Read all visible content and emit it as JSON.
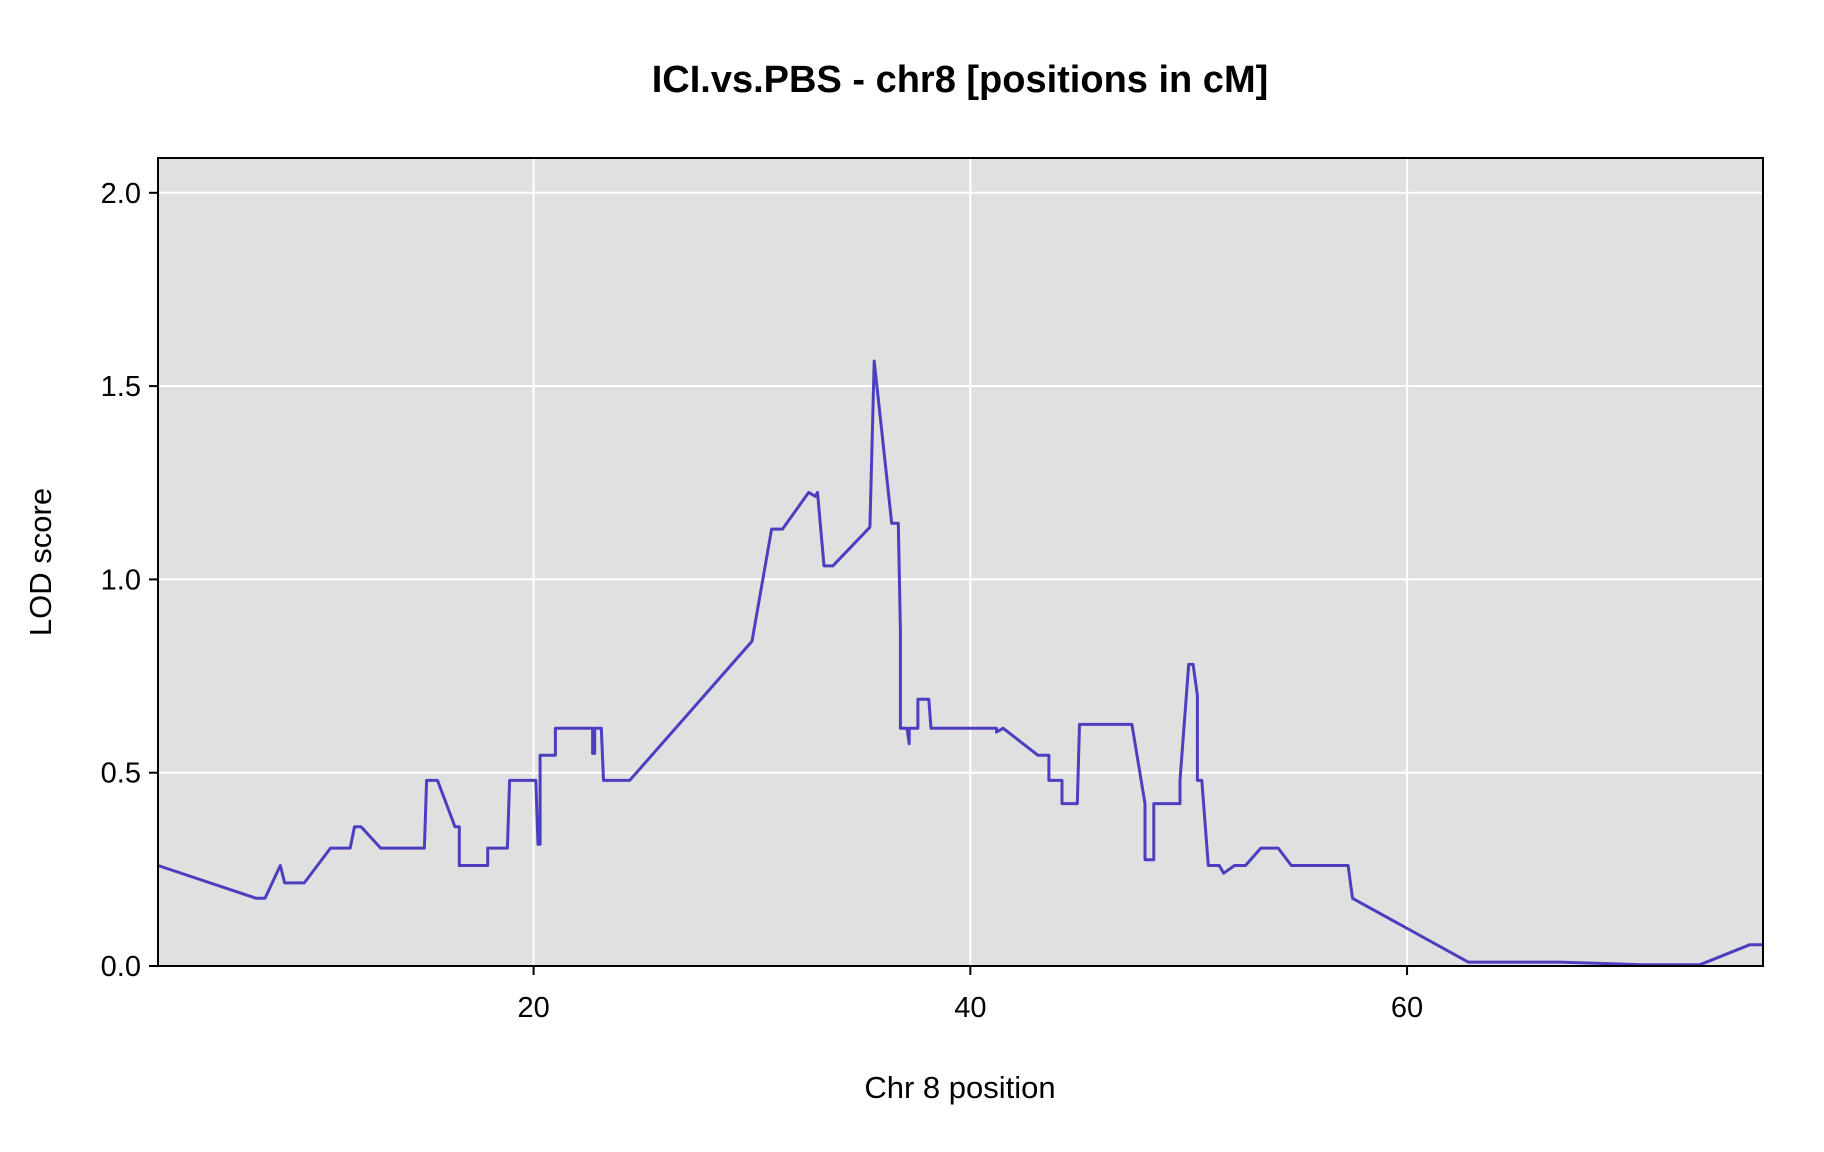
{
  "chart_data": {
    "type": "line",
    "title": "ICI.vs.PBS - chr8 [positions in cM]",
    "xlabel": "Chr 8 position",
    "ylabel": "LOD score",
    "xlim": [
      2.8,
      76.3
    ],
    "ylim": [
      0,
      2.09
    ],
    "xticks": [
      20,
      40,
      60
    ],
    "yticks": [
      0.0,
      0.5,
      1.0,
      1.5,
      2.0
    ],
    "ytick_labels": [
      "0.0",
      "0.5",
      "1.0",
      "1.5",
      "2.0"
    ],
    "grid": true,
    "colors": {
      "line": "#4B3FC0",
      "panel": "#E0E0E0",
      "grid": "#FFFFFF",
      "frame": "#000000"
    },
    "series": [
      {
        "x": [
          2.8,
          7.3,
          7.7,
          8.4,
          8.6,
          9.5,
          10.7,
          11.6,
          11.8,
          12.1,
          13.0,
          14.1,
          15.0,
          15.1,
          15.6,
          16.4,
          16.6,
          16.6,
          17.9,
          17.9,
          18.8,
          18.9,
          20.1,
          20.2,
          20.3,
          20.3,
          21.0,
          21.0,
          22.7,
          22.7,
          22.8,
          22.8,
          23.1,
          23.2,
          24.4,
          30.0,
          30.9,
          31.4,
          32.6,
          32.9,
          33.0,
          33.3,
          33.7,
          35.4,
          35.6,
          36.4,
          36.7,
          36.8,
          36.8,
          37.1,
          37.2,
          37.2,
          37.6,
          37.6,
          38.1,
          38.2,
          41.2,
          41.2,
          41.5,
          43.1,
          43.6,
          43.6,
          44.2,
          44.2,
          44.9,
          45.0,
          47.4,
          48.0,
          48.0,
          48.4,
          48.4,
          49.6,
          49.6,
          50.0,
          50.2,
          50.4,
          50.4,
          50.6,
          50.9,
          51.4,
          51.6,
          52.1,
          52.6,
          53.3,
          54.1,
          54.7,
          56.2,
          57.3,
          57.5,
          62.8,
          67.0,
          70.8,
          73.4,
          75.7,
          76.3
        ],
        "y": [
          0.26,
          0.175,
          0.175,
          0.26,
          0.215,
          0.215,
          0.305,
          0.305,
          0.36,
          0.36,
          0.305,
          0.305,
          0.305,
          0.48,
          0.48,
          0.36,
          0.36,
          0.26,
          0.26,
          0.305,
          0.305,
          0.48,
          0.48,
          0.315,
          0.315,
          0.545,
          0.545,
          0.615,
          0.615,
          0.55,
          0.55,
          0.615,
          0.615,
          0.48,
          0.48,
          0.84,
          1.13,
          1.13,
          1.225,
          1.215,
          1.225,
          1.035,
          1.035,
          1.135,
          1.565,
          1.145,
          1.145,
          0.87,
          0.615,
          0.615,
          0.575,
          0.615,
          0.615,
          0.69,
          0.69,
          0.615,
          0.615,
          0.605,
          0.615,
          0.545,
          0.545,
          0.48,
          0.48,
          0.42,
          0.42,
          0.625,
          0.625,
          0.42,
          0.275,
          0.275,
          0.42,
          0.42,
          0.48,
          0.78,
          0.78,
          0.7,
          0.48,
          0.48,
          0.26,
          0.26,
          0.24,
          0.26,
          0.26,
          0.305,
          0.305,
          0.26,
          0.26,
          0.26,
          0.175,
          0.01,
          0.01,
          0.003,
          0.003,
          0.055,
          0.055
        ]
      }
    ]
  }
}
